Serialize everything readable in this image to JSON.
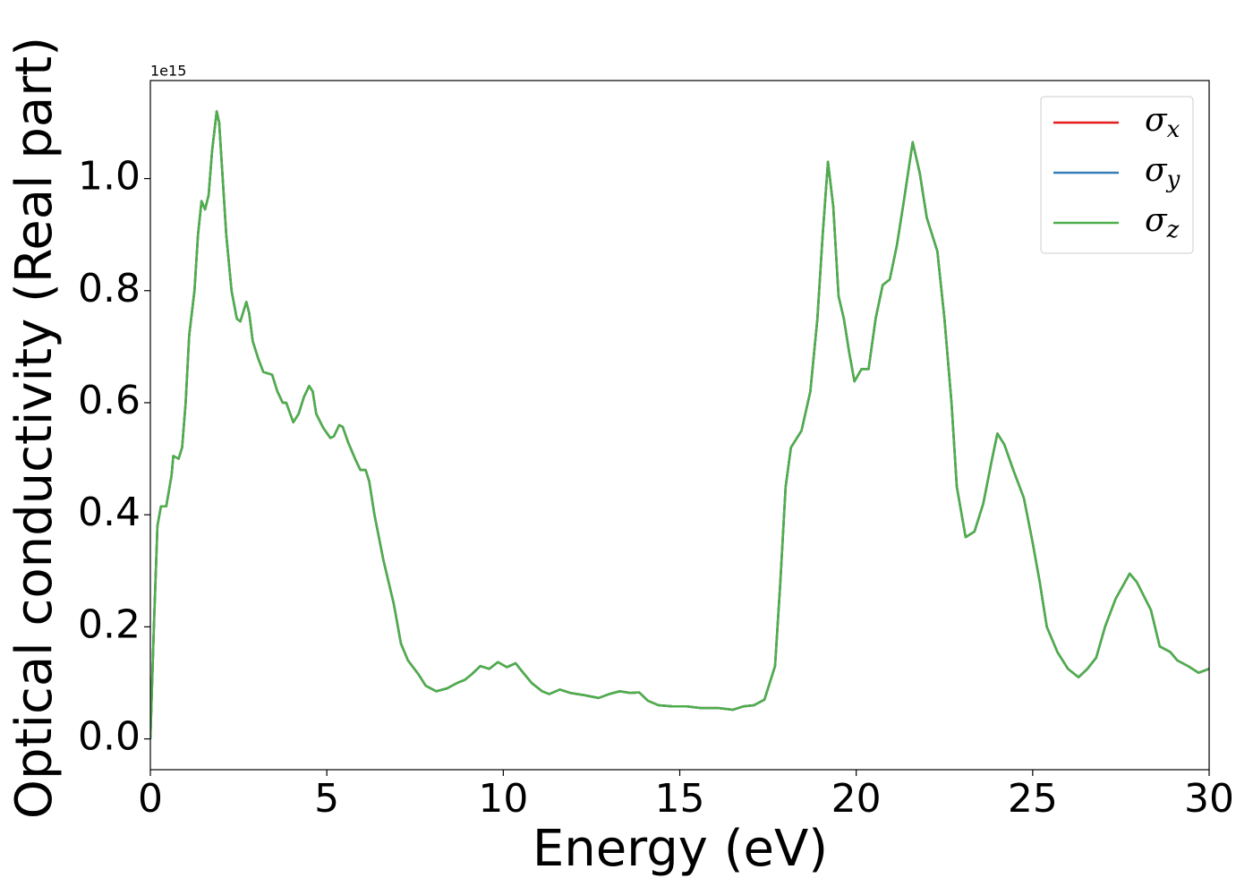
{
  "chart_data": {
    "type": "line",
    "xlabel": "Energy (eV)",
    "ylabel": "Optical conductivity (Real part)",
    "y_offset_label": "1e15",
    "xlim": [
      0,
      30
    ],
    "xticks": [
      0,
      5,
      10,
      15,
      20,
      25,
      30
    ],
    "ylim": [
      -0.055,
      1.175
    ],
    "yticks": [
      {
        "value": 0,
        "label": "0.0"
      },
      0.2,
      0.4,
      0.6,
      0.8,
      {
        "value": 1,
        "label": "1.0"
      }
    ],
    "legend": "upper right",
    "x": [
      0,
      0.1,
      0.2,
      0.3,
      0.45,
      0.6,
      0.65,
      0.8,
      0.9,
      1.0,
      1.1,
      1.25,
      1.35,
      1.45,
      1.55,
      1.65,
      1.75,
      1.88,
      1.95,
      2.05,
      2.15,
      2.3,
      2.45,
      2.55,
      2.72,
      2.8,
      2.9,
      3.05,
      3.2,
      3.45,
      3.6,
      3.75,
      3.85,
      4.05,
      4.2,
      4.35,
      4.5,
      4.6,
      4.7,
      4.9,
      5.1,
      5.2,
      5.35,
      5.45,
      5.6,
      5.8,
      5.95,
      6.1,
      6.2,
      6.35,
      6.6,
      6.9,
      7.1,
      7.3,
      7.6,
      7.8,
      8.1,
      8.4,
      8.7,
      8.9,
      9.1,
      9.35,
      9.6,
      9.85,
      10.1,
      10.35,
      10.5,
      10.8,
      11.1,
      11.3,
      11.6,
      11.9,
      12.3,
      12.7,
      13.0,
      13.3,
      13.6,
      13.85,
      14.1,
      14.4,
      14.8,
      15.2,
      15.6,
      16.1,
      16.5,
      16.8,
      17.1,
      17.4,
      17.7,
      17.85,
      18.0,
      18.15,
      18.45,
      18.7,
      18.9,
      19.05,
      19.2,
      19.35,
      19.5,
      19.65,
      19.8,
      19.95,
      20.15,
      20.35,
      20.55,
      20.75,
      20.95,
      21.15,
      21.35,
      21.6,
      21.8,
      22.0,
      22.3,
      22.5,
      22.7,
      22.85,
      23.1,
      23.35,
      23.6,
      23.85,
      24.0,
      24.2,
      24.45,
      24.75,
      25.0,
      25.2,
      25.4,
      25.7,
      26.0,
      26.3,
      26.55,
      26.8,
      27.05,
      27.35,
      27.75,
      27.95,
      28.15,
      28.35,
      28.6,
      28.9,
      29.1,
      29.4,
      29.7,
      30.0
    ],
    "series": [
      {
        "name": "σx",
        "color": "#e41a1c",
        "values": [
          0,
          0.2,
          0.38,
          0.415,
          0.415,
          0.47,
          0.505,
          0.5,
          0.52,
          0.6,
          0.72,
          0.8,
          0.9,
          0.96,
          0.945,
          0.97,
          1.05,
          1.12,
          1.1,
          1.0,
          0.9,
          0.8,
          0.75,
          0.745,
          0.78,
          0.76,
          0.71,
          0.68,
          0.655,
          0.65,
          0.62,
          0.6,
          0.6,
          0.565,
          0.58,
          0.61,
          0.63,
          0.62,
          0.58,
          0.555,
          0.537,
          0.54,
          0.56,
          0.557,
          0.53,
          0.5,
          0.48,
          0.48,
          0.46,
          0.4,
          0.32,
          0.24,
          0.17,
          0.14,
          0.115,
          0.095,
          0.085,
          0.09,
          0.1,
          0.105,
          0.115,
          0.13,
          0.125,
          0.137,
          0.128,
          0.135,
          0.123,
          0.1,
          0.085,
          0.08,
          0.088,
          0.082,
          0.078,
          0.073,
          0.08,
          0.085,
          0.082,
          0.083,
          0.068,
          0.06,
          0.058,
          0.058,
          0.055,
          0.055,
          0.052,
          0.058,
          0.06,
          0.07,
          0.13,
          0.28,
          0.45,
          0.52,
          0.55,
          0.62,
          0.75,
          0.9,
          1.03,
          0.95,
          0.79,
          0.75,
          0.69,
          0.638,
          0.66,
          0.66,
          0.75,
          0.81,
          0.82,
          0.88,
          0.96,
          1.065,
          1.01,
          0.93,
          0.87,
          0.75,
          0.6,
          0.45,
          0.36,
          0.37,
          0.42,
          0.5,
          0.545,
          0.525,
          0.48,
          0.43,
          0.35,
          0.28,
          0.2,
          0.155,
          0.125,
          0.11,
          0.125,
          0.145,
          0.2,
          0.25,
          0.295,
          0.28,
          0.255,
          0.23,
          0.165,
          0.155,
          0.14,
          0.13,
          0.118,
          0.125
        ]
      },
      {
        "name": "σy",
        "color": "#377eb8",
        "values": [
          0,
          0.2,
          0.38,
          0.415,
          0.415,
          0.47,
          0.505,
          0.5,
          0.52,
          0.6,
          0.72,
          0.8,
          0.9,
          0.96,
          0.945,
          0.97,
          1.05,
          1.12,
          1.1,
          1.0,
          0.9,
          0.8,
          0.75,
          0.745,
          0.78,
          0.76,
          0.71,
          0.68,
          0.655,
          0.65,
          0.62,
          0.6,
          0.6,
          0.565,
          0.58,
          0.61,
          0.63,
          0.62,
          0.58,
          0.555,
          0.537,
          0.54,
          0.56,
          0.557,
          0.53,
          0.5,
          0.48,
          0.48,
          0.46,
          0.4,
          0.32,
          0.24,
          0.17,
          0.14,
          0.115,
          0.095,
          0.085,
          0.09,
          0.1,
          0.105,
          0.115,
          0.13,
          0.125,
          0.137,
          0.128,
          0.135,
          0.123,
          0.1,
          0.085,
          0.08,
          0.088,
          0.082,
          0.078,
          0.073,
          0.08,
          0.085,
          0.082,
          0.083,
          0.068,
          0.06,
          0.058,
          0.058,
          0.055,
          0.055,
          0.052,
          0.058,
          0.06,
          0.07,
          0.13,
          0.28,
          0.45,
          0.52,
          0.55,
          0.62,
          0.75,
          0.9,
          1.03,
          0.95,
          0.79,
          0.75,
          0.69,
          0.638,
          0.66,
          0.66,
          0.75,
          0.81,
          0.82,
          0.88,
          0.96,
          1.065,
          1.01,
          0.93,
          0.87,
          0.75,
          0.6,
          0.45,
          0.36,
          0.37,
          0.42,
          0.5,
          0.545,
          0.525,
          0.48,
          0.43,
          0.35,
          0.28,
          0.2,
          0.155,
          0.125,
          0.11,
          0.125,
          0.145,
          0.2,
          0.25,
          0.295,
          0.28,
          0.255,
          0.23,
          0.165,
          0.155,
          0.14,
          0.13,
          0.118,
          0.125
        ]
      },
      {
        "name": "σz",
        "color": "#4daf4a",
        "values": [
          0,
          0.2,
          0.38,
          0.415,
          0.415,
          0.47,
          0.505,
          0.5,
          0.52,
          0.6,
          0.72,
          0.8,
          0.9,
          0.96,
          0.945,
          0.97,
          1.05,
          1.12,
          1.1,
          1.0,
          0.9,
          0.8,
          0.75,
          0.745,
          0.78,
          0.76,
          0.71,
          0.68,
          0.655,
          0.65,
          0.62,
          0.6,
          0.6,
          0.565,
          0.58,
          0.61,
          0.63,
          0.62,
          0.58,
          0.555,
          0.537,
          0.54,
          0.56,
          0.557,
          0.53,
          0.5,
          0.48,
          0.48,
          0.46,
          0.4,
          0.32,
          0.24,
          0.17,
          0.14,
          0.115,
          0.095,
          0.085,
          0.09,
          0.1,
          0.105,
          0.115,
          0.13,
          0.125,
          0.137,
          0.128,
          0.135,
          0.123,
          0.1,
          0.085,
          0.08,
          0.088,
          0.082,
          0.078,
          0.073,
          0.08,
          0.085,
          0.082,
          0.083,
          0.068,
          0.06,
          0.058,
          0.058,
          0.055,
          0.055,
          0.052,
          0.058,
          0.06,
          0.07,
          0.13,
          0.28,
          0.45,
          0.52,
          0.55,
          0.62,
          0.75,
          0.9,
          1.03,
          0.95,
          0.79,
          0.75,
          0.69,
          0.638,
          0.66,
          0.66,
          0.75,
          0.81,
          0.82,
          0.88,
          0.96,
          1.065,
          1.01,
          0.93,
          0.87,
          0.75,
          0.6,
          0.45,
          0.36,
          0.37,
          0.42,
          0.5,
          0.545,
          0.525,
          0.48,
          0.43,
          0.35,
          0.28,
          0.2,
          0.155,
          0.125,
          0.11,
          0.125,
          0.145,
          0.2,
          0.25,
          0.295,
          0.28,
          0.255,
          0.23,
          0.165,
          0.155,
          0.14,
          0.13,
          0.118,
          0.125
        ]
      }
    ]
  }
}
